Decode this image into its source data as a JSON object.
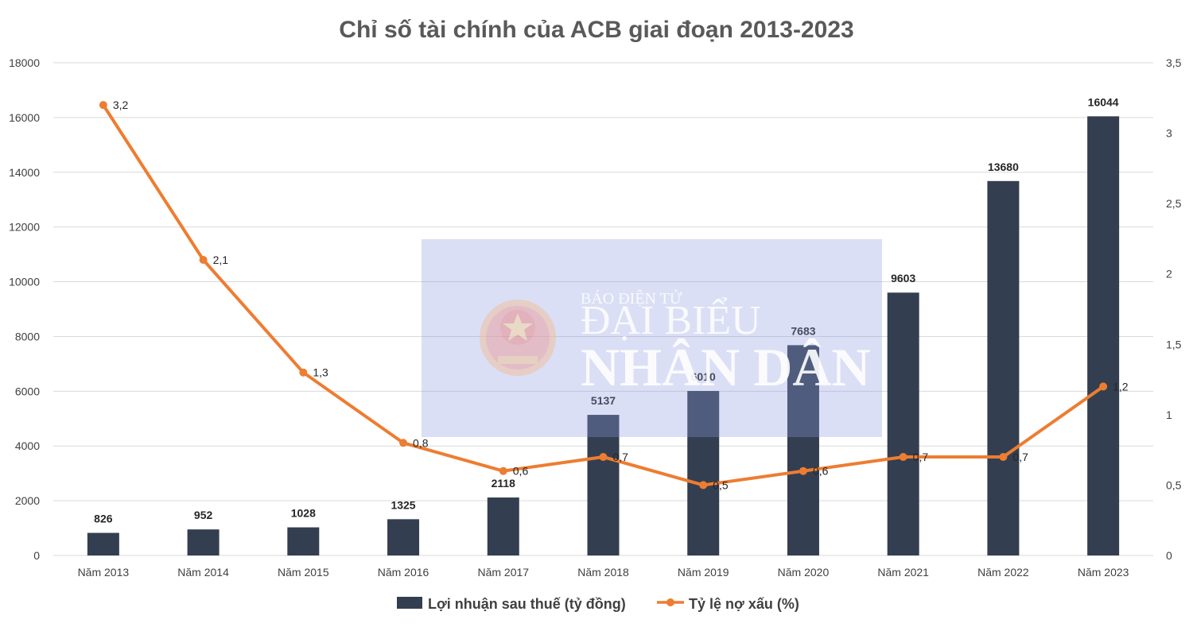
{
  "chart_data": {
    "type": "bar+line",
    "title": "Chỉ số tài chính của ACB giai đoạn 2013-2023",
    "categories": [
      "Năm 2013",
      "Năm 2014",
      "Năm 2015",
      "Năm 2016",
      "Năm 2017",
      "Năm 2018",
      "Năm 2019",
      "Năm 2020",
      "Năm 2021",
      "Năm 2022",
      "Năm 2023"
    ],
    "series": [
      {
        "name": "Lợi nhuận sau thuế (tỷ đồng)",
        "type": "bar",
        "axis": "left",
        "values": [
          826,
          952,
          1028,
          1325,
          2118,
          5137,
          6010,
          7683,
          9603,
          13680,
          16044
        ],
        "labels": [
          "826",
          "952",
          "1028",
          "1325",
          "2118",
          "5137",
          "6010",
          "7683",
          "9603",
          "13680",
          "16044"
        ],
        "color": "#333f50"
      },
      {
        "name": "Tỷ lệ nợ xấu (%)",
        "type": "line",
        "axis": "right",
        "values": [
          3.2,
          2.1,
          1.3,
          0.8,
          0.6,
          0.7,
          0.5,
          0.6,
          0.7,
          0.7,
          1.2
        ],
        "labels": [
          "3,2",
          "2,1",
          "1,3",
          "0,8",
          "0,6",
          "0,7",
          "0,5",
          "0,6",
          "0,7",
          "0,7",
          "1,2"
        ],
        "color": "#ed7d31"
      }
    ],
    "y_left": {
      "ylim": [
        0,
        18000
      ],
      "ticks": [
        0,
        2000,
        4000,
        6000,
        8000,
        10000,
        12000,
        14000,
        16000,
        18000
      ],
      "tick_labels": [
        "0",
        "2000",
        "4000",
        "6000",
        "8000",
        "10000",
        "12000",
        "14000",
        "16000",
        "18000"
      ]
    },
    "y_right": {
      "ylim": [
        0,
        3.5
      ],
      "ticks": [
        0,
        0.5,
        1,
        1.5,
        2,
        2.5,
        3,
        3.5
      ],
      "tick_labels": [
        "0",
        "0,5",
        "1",
        "1,5",
        "2",
        "2,5",
        "3",
        "3,5"
      ]
    },
    "grid": true,
    "legend_position": "bottom",
    "gridline_color": "#d9d9d9"
  },
  "watermark": {
    "line1": "BÁO ĐIỆN TỬ",
    "line2": "ĐẠI BIỂU",
    "line3": "NHÂN DÂN",
    "box_color": "#8f9be0",
    "emblem_color": "#e9a898"
  }
}
